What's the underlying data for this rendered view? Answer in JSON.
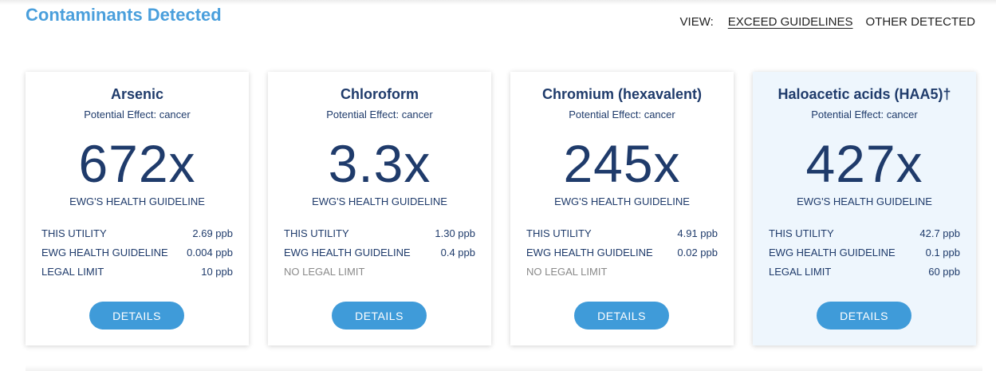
{
  "header": {
    "title": "Contaminants Detected",
    "view_label": "VIEW:",
    "view_options": [
      "EXCEED GUIDELINES",
      "OTHER DETECTED"
    ]
  },
  "colors": {
    "accent": "#4a9fdc",
    "navy_text": "#1f3b6b",
    "button": "#3f9bd9",
    "highlight_card_bg": "#eef6fd"
  },
  "cards": [
    {
      "name": "Arsenic",
      "effect": "Potential Effect: cancer",
      "multiple": "672x",
      "multiple_label": "EWG'S HEALTH GUIDELINE",
      "rows": [
        {
          "label": "THIS UTILITY",
          "value": "2.69 ppb"
        },
        {
          "label": "EWG HEALTH GUIDELINE",
          "value": "0.004 ppb"
        },
        {
          "label": "LEGAL LIMIT",
          "value": "10 ppb"
        }
      ],
      "button": "DETAILS"
    },
    {
      "name": "Chloroform",
      "effect": "Potential Effect: cancer",
      "multiple": "3.3x",
      "multiple_label": "EWG'S HEALTH GUIDELINE",
      "rows": [
        {
          "label": "THIS UTILITY",
          "value": "1.30 ppb"
        },
        {
          "label": "EWG HEALTH GUIDELINE",
          "value": "0.4 ppb"
        },
        {
          "label": "NO LEGAL LIMIT",
          "value": ""
        }
      ],
      "button": "DETAILS"
    },
    {
      "name": "Chromium (hexavalent)",
      "effect": "Potential Effect: cancer",
      "multiple": "245x",
      "multiple_label": "EWG'S HEALTH GUIDELINE",
      "rows": [
        {
          "label": "THIS UTILITY",
          "value": "4.91 ppb"
        },
        {
          "label": "EWG HEALTH GUIDELINE",
          "value": "0.02 ppb"
        },
        {
          "label": "NO LEGAL LIMIT",
          "value": ""
        }
      ],
      "button": "DETAILS"
    },
    {
      "name": "Haloacetic acids (HAA5)†",
      "effect": "Potential Effect: cancer",
      "multiple": "427x",
      "multiple_label": "EWG'S HEALTH GUIDELINE",
      "rows": [
        {
          "label": "THIS UTILITY",
          "value": "42.7 ppb"
        },
        {
          "label": "EWG HEALTH GUIDELINE",
          "value": "0.1 ppb"
        },
        {
          "label": "LEGAL LIMIT",
          "value": "60 ppb"
        }
      ],
      "button": "DETAILS"
    }
  ]
}
